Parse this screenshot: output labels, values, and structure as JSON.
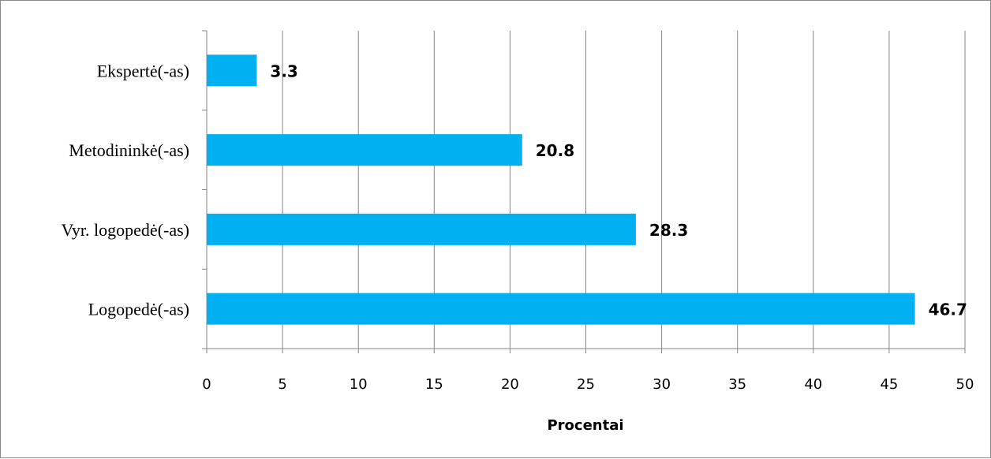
{
  "chart_data": {
    "type": "bar",
    "orientation": "horizontal",
    "categories": [
      "Ekspertė(-as)",
      "Metodininkė(-as)",
      "Vyr. logopedė(-as)",
      "Logopedė(-as)"
    ],
    "values": [
      3.3,
      20.8,
      28.3,
      46.7
    ],
    "data_labels": [
      "3.3",
      "20.8",
      "28.3",
      "46.7"
    ],
    "xlabel": "Procentai",
    "xlim": [
      0,
      50
    ],
    "xticks": [
      0,
      5,
      10,
      15,
      20,
      25,
      30,
      35,
      40,
      45,
      50
    ],
    "grid": "vertical",
    "legend": "none",
    "bar_color": "#00b0f0"
  }
}
